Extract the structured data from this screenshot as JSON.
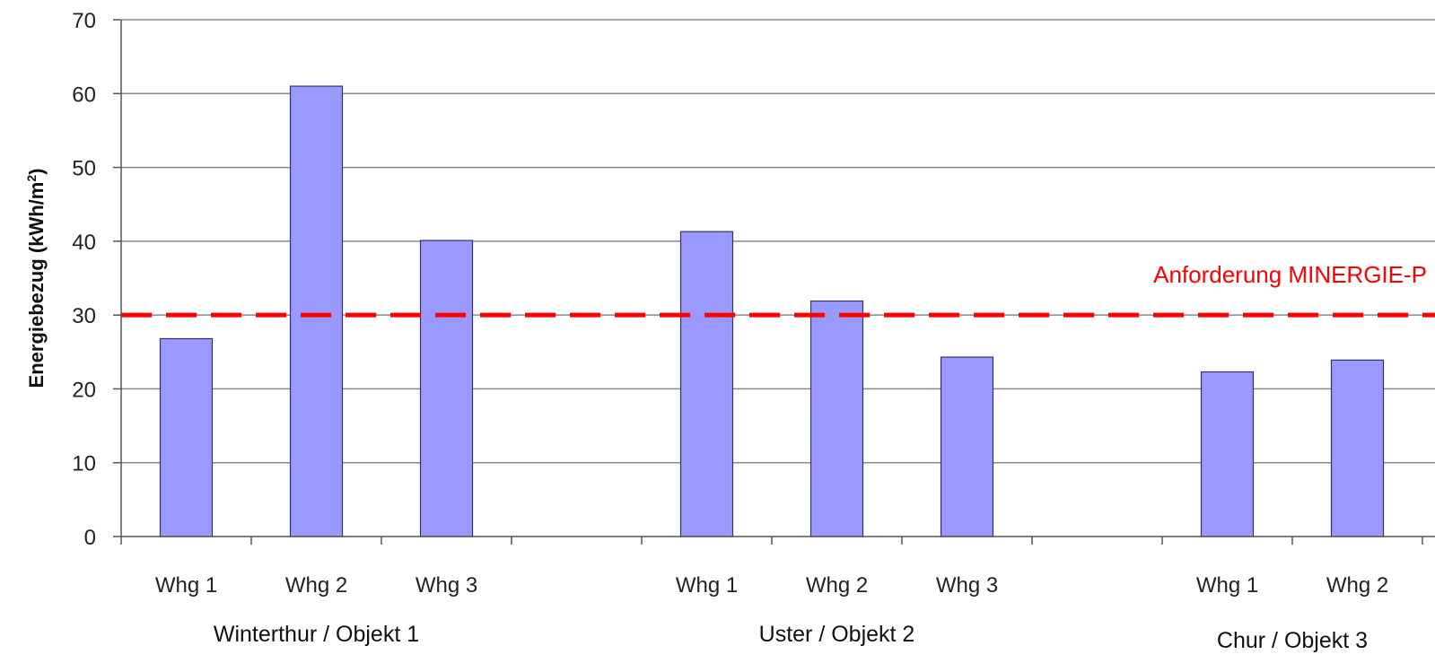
{
  "chart_data": {
    "type": "bar",
    "ylabel": "Energiebezug (kWh/m²)",
    "ylim": [
      0,
      70
    ],
    "yticks": [
      0,
      10,
      20,
      30,
      40,
      50,
      60,
      70
    ],
    "grid": true,
    "bar_color": "#9999ff",
    "bar_edge_color": "#333366",
    "groups": [
      {
        "name": "Winterthur / Objekt 1",
        "categories": [
          "Whg 1",
          "Whg 2",
          "Whg 3"
        ],
        "values": [
          26.8,
          61,
          40.1
        ]
      },
      {
        "name": "Uster / Objekt 2",
        "categories": [
          "Whg 1",
          "Whg 2",
          "Whg 3"
        ],
        "values": [
          41.3,
          31.9,
          24.3
        ]
      },
      {
        "name": "Chur / Objekt 3",
        "categories": [
          "Whg 1",
          "Whg 2"
        ],
        "values": [
          22.3,
          23.9
        ]
      }
    ],
    "reference_line": {
      "label": "Anforderung MINERGIE-P",
      "value": 30,
      "color": "#ff0000",
      "style": "dashed"
    }
  }
}
